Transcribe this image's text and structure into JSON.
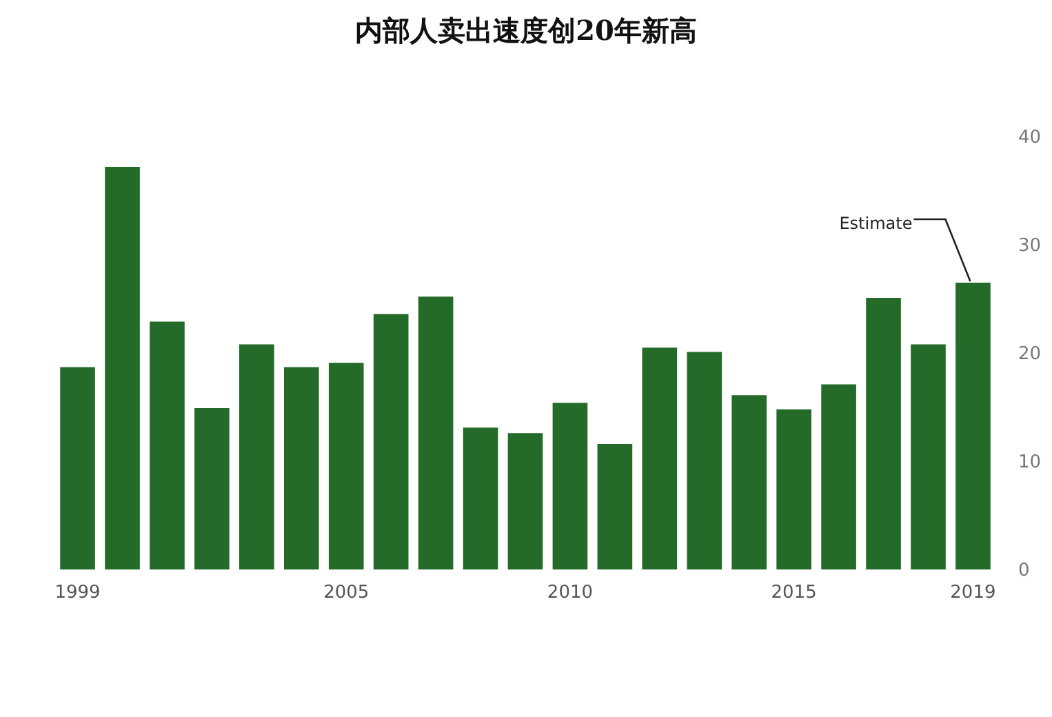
{
  "chart_data": {
    "type": "bar",
    "title": "内部人卖出速度创20年新高",
    "categories": [
      "1999",
      null,
      null,
      null,
      null,
      null,
      "2005",
      null,
      null,
      null,
      null,
      "2010",
      null,
      null,
      null,
      null,
      "2015",
      null,
      null,
      null,
      "2019"
    ],
    "values": [
      18.7,
      37.2,
      22.9,
      14.9,
      20.8,
      18.7,
      19.1,
      23.6,
      25.2,
      13.1,
      12.6,
      15.4,
      11.6,
      20.5,
      20.1,
      16.1,
      14.8,
      17.1,
      25.1,
      20.8,
      26.5
    ],
    "color": "#246b2a",
    "ylim": [
      0,
      40
    ],
    "yticks": [
      0,
      10,
      20,
      30,
      40
    ],
    "grid": false,
    "annotations": [
      {
        "text": "Estimate",
        "x": "2019",
        "y": 26.5
      }
    ]
  }
}
